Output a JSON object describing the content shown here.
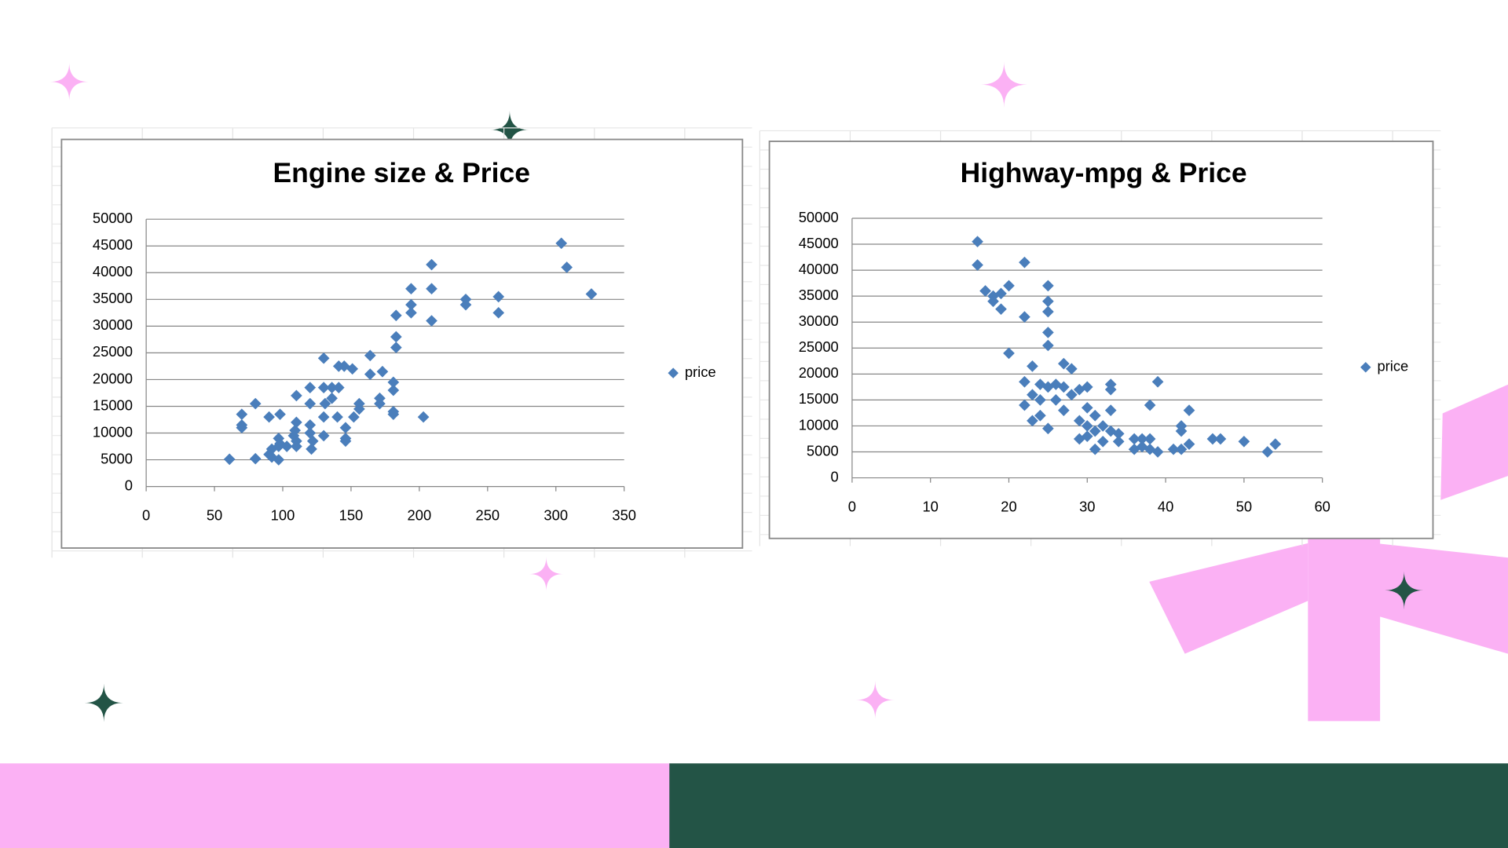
{
  "chart_data": [
    {
      "type": "scatter",
      "title": "Engine size & Price",
      "grid": true,
      "legend": "right",
      "x": [
        61,
        70,
        70,
        70,
        80,
        80,
        90,
        90,
        92,
        92,
        97,
        97,
        98,
        98,
        97,
        103,
        108,
        109,
        110,
        110,
        110,
        110,
        120,
        120,
        120,
        120,
        121,
        122,
        130,
        130,
        130,
        130,
        131,
        136,
        136,
        140,
        141,
        141,
        145,
        146,
        146,
        146,
        151,
        152,
        156,
        156,
        164,
        164,
        171,
        171,
        173,
        181,
        181,
        181,
        181,
        183,
        183,
        183,
        194,
        194,
        194,
        203,
        209,
        209,
        209,
        234,
        234,
        258,
        258,
        304,
        308,
        326
      ],
      "series": [
        {
          "name": "price",
          "color": "#4a7ebb",
          "values": [
            5100,
            13500,
            11500,
            11000,
            15500,
            5200,
            13000,
            6000,
            5500,
            7000,
            7500,
            9000,
            8000,
            13500,
            5000,
            7500,
            9500,
            10500,
            17000,
            12000,
            8500,
            7500,
            18500,
            15500,
            11500,
            10000,
            7000,
            8500,
            24000,
            18500,
            13000,
            9500,
            15500,
            18500,
            16500,
            13000,
            22500,
            18500,
            22500,
            11000,
            8500,
            9000,
            22000,
            13000,
            15500,
            14500,
            24500,
            21000,
            16500,
            15500,
            21500,
            19500,
            18000,
            14000,
            13500,
            32000,
            28000,
            26000,
            37000,
            34000,
            32500,
            13000,
            41500,
            37000,
            31000,
            35000,
            34000,
            35500,
            32500,
            45500,
            41000,
            36000
          ]
        }
      ],
      "xlim": [
        0,
        350
      ],
      "xticks": [
        0,
        50,
        100,
        150,
        200,
        250,
        300,
        350
      ],
      "ylim": [
        0,
        50000
      ],
      "yticks": [
        0,
        5000,
        10000,
        15000,
        20000,
        25000,
        30000,
        35000,
        40000,
        45000,
        50000
      ]
    },
    {
      "type": "scatter",
      "title": "Highway-mpg & Price",
      "grid": true,
      "legend": "right",
      "x": [
        16,
        16,
        17,
        18,
        18,
        19,
        19,
        20,
        20,
        22,
        22,
        22,
        22,
        23,
        23,
        23,
        24,
        24,
        24,
        25,
        25,
        25,
        25,
        25,
        25,
        25,
        26,
        26,
        27,
        27,
        27,
        28,
        28,
        29,
        29,
        29,
        30,
        30,
        30,
        30,
        31,
        31,
        31,
        32,
        32,
        33,
        33,
        33,
        33,
        34,
        34,
        36,
        36,
        37,
        37,
        38,
        38,
        38,
        39,
        39,
        41,
        42,
        42,
        42,
        43,
        43,
        46,
        47,
        50,
        53,
        54
      ],
      "series": [
        {
          "name": "price",
          "color": "#4a7ebb",
          "values": [
            45500,
            41000,
            36000,
            35000,
            34000,
            32500,
            35500,
            37000,
            24000,
            41500,
            31000,
            18500,
            14000,
            21500,
            16000,
            11000,
            18000,
            15000,
            12000,
            37000,
            34000,
            32000,
            28000,
            25500,
            17500,
            9500,
            18000,
            15000,
            22000,
            17500,
            13000,
            21000,
            16000,
            17000,
            11000,
            7500,
            17500,
            13500,
            10000,
            8000,
            12000,
            9000,
            5500,
            10000,
            7000,
            18000,
            17000,
            13000,
            9000,
            8500,
            7000,
            5500,
            7500,
            7500,
            6000,
            14000,
            7500,
            5500,
            18500,
            5000,
            5500,
            10000,
            9000,
            5500,
            13000,
            6500,
            7500,
            7500,
            7000,
            5000,
            6500
          ]
        }
      ],
      "xlim": [
        0,
        60
      ],
      "xticks": [
        0,
        10,
        20,
        30,
        40,
        50,
        60
      ],
      "ylim": [
        0,
        50000
      ],
      "yticks": [
        0,
        5000,
        10000,
        15000,
        20000,
        25000,
        30000,
        35000,
        40000,
        45000,
        50000
      ]
    }
  ]
}
